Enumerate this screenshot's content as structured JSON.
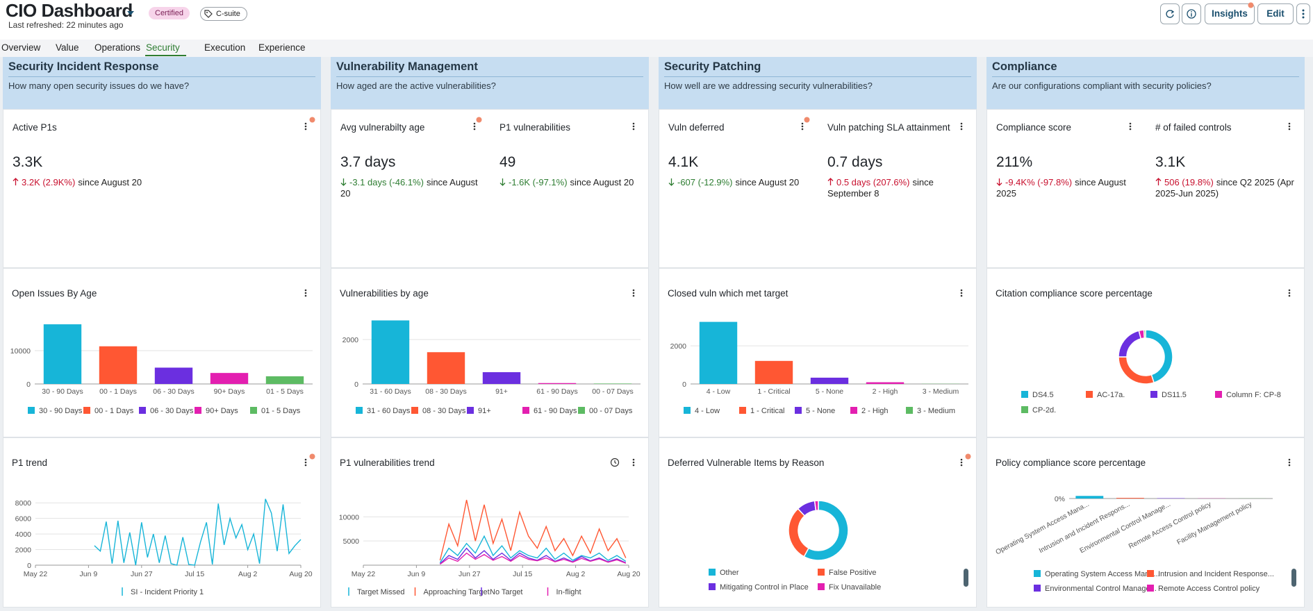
{
  "header": {
    "title": "CIO Dashboard",
    "last_refreshed": "Last refreshed: 22 minutes ago",
    "badges": [
      "Certified",
      "C-suite"
    ],
    "actions": [
      "Insights",
      "Edit"
    ]
  },
  "tabs": [
    "Overview",
    "Value",
    "Operations",
    "Security",
    "Execution",
    "Experience"
  ],
  "active_tab": 3,
  "columns": [
    {
      "title": "Security Incident Response",
      "question": "How many open security issues do we have?",
      "kpis": [
        {
          "title": "Active P1s",
          "value": "3.3K",
          "delta": "3.2K (2.9K%)",
          "since": "since August 20",
          "direction": "up",
          "color": "#c8102e"
        }
      ],
      "chart": {
        "type": "bar",
        "title": "Open Issues By Age",
        "categories": [
          "30 - 90 Days",
          "00 - 1 Days",
          "06 - 30 Days",
          "90+ Days",
          "01 - 5 Days"
        ],
        "values": [
          17900,
          11300,
          4900,
          3300,
          2300
        ],
        "colors": [
          "#17b5d8",
          "#ff5733",
          "#6b2fe0",
          "#e31fb0",
          "#5dbb63"
        ],
        "ylim": [
          0,
          20000
        ],
        "yticks": [
          0,
          10000
        ]
      },
      "trend": {
        "type": "line",
        "title": "P1 trend",
        "x": [
          "Jun 11",
          "Jun 13",
          "Jun 15",
          "Jun 17",
          "Jun 19",
          "Jun 21",
          "Jun 23",
          "Jun 25",
          "Jun 27",
          "Jun 29",
          "Jul 1",
          "Jul 3",
          "Jul 5",
          "Jul 7",
          "Jul 9",
          "Jul 11",
          "Jul 13",
          "Jul 15",
          "Jul 17",
          "Jul 19",
          "Jul 21",
          "Jul 23",
          "Jul 25",
          "Jul 27",
          "Jul 29",
          "Jul 31",
          "Aug 2",
          "Aug 4",
          "Aug 6",
          "Aug 8",
          "Aug 10",
          "Aug 12",
          "Aug 14",
          "Aug 16",
          "Aug 18",
          "Aug 20"
        ],
        "xlim": [
          "May 22",
          "Aug 20"
        ],
        "xticks": [
          "May 22",
          "Jun 9",
          "Jun 27",
          "Jul 15",
          "Aug 2",
          "Aug 20"
        ],
        "ylim": [
          0,
          9000
        ],
        "yticks": [
          0,
          2000,
          4000,
          6000,
          8000
        ],
        "series": [
          {
            "name": "SI - Incident Priority 1",
            "color": "#17b5d8",
            "values": [
              2500,
              1800,
              5600,
              200,
              5700,
              300,
              4200,
              0,
              5500,
              1000,
              4000,
              300,
              3800,
              200,
              0,
              3600,
              100,
              0,
              3000,
              5500,
              100,
              7900,
              2600,
              6000,
              3500,
              5200,
              2000,
              4000,
              200,
              8500,
              6700,
              1800,
              7800,
              1500,
              2500,
              3300
            ]
          }
        ]
      }
    },
    {
      "title": "Vulnerability Management",
      "question": "How aged are the active vulnerabilities?",
      "kpis": [
        {
          "title": "Avg vulnerabilty age",
          "value": "3.7 days",
          "delta": "-3.1 days (-46.1%)",
          "since": "since August 20",
          "direction": "down",
          "color": "#2e7d32"
        },
        {
          "title": "P1 vulnerabilities",
          "value": "49",
          "delta": "-1.6K (-97.1%)",
          "since": "since August 20",
          "direction": "down",
          "color": "#2e7d32"
        }
      ],
      "chart": {
        "type": "bar",
        "title": "Vulnerabilities by age",
        "categories": [
          "31 - 60 Days",
          "08 - 30 Days",
          "91+",
          "61 - 90 Days",
          "00 - 07 Days"
        ],
        "values": [
          2860,
          1430,
          530,
          40,
          20
        ],
        "colors": [
          "#17b5d8",
          "#ff5733",
          "#6b2fe0",
          "#e31fb0",
          "#5dbb63"
        ],
        "ylim": [
          0,
          3000
        ],
        "yticks": [
          0,
          2000
        ]
      },
      "trend": {
        "type": "line",
        "title": "P1 vulnerabilities trend",
        "x": [
          "Jun 17",
          "Jun 20",
          "Jun 23",
          "Jun 26",
          "Jun 29",
          "Jul 2",
          "Jul 5",
          "Jul 8",
          "Jul 11",
          "Jul 14",
          "Jul 17",
          "Jul 20",
          "Jul 23",
          "Jul 26",
          "Jul 29",
          "Aug 1",
          "Aug 4",
          "Aug 7",
          "Aug 10",
          "Aug 13",
          "Aug 16",
          "Aug 19"
        ],
        "xlim": [
          "May 22",
          "Aug 20"
        ],
        "xticks": [
          "May 22",
          "Jun 9",
          "Jun 27",
          "Jul 15",
          "Aug 2",
          "Aug 20"
        ],
        "ylim": [
          0,
          14500
        ],
        "yticks": [
          5000,
          10000
        ],
        "series": [
          {
            "name": "Target Missed",
            "color": "#17b5d8",
            "values": [
              500,
              3500,
              2000,
              4500,
              2500,
              6000,
              2000,
              4000,
              1500,
              3000,
              2000,
              1500,
              3500,
              1200,
              2500,
              1000,
              2000,
              1500,
              2500,
              1000,
              2000,
              800
            ]
          },
          {
            "name": "Approaching Target",
            "color": "#ff5733",
            "values": [
              1000,
              8500,
              4000,
              13500,
              5000,
              12500,
              4500,
              9500,
              3000,
              11000,
              6000,
              3500,
              8000,
              3000,
              5500,
              2000,
              6000,
              2500,
              7500,
              3000,
              5500,
              1500
            ]
          },
          {
            "name": "No Target",
            "color": "#6b2fe0",
            "values": [
              300,
              2000,
              1200,
              3500,
              1500,
              3000,
              1200,
              2500,
              1000,
              2500,
              1500,
              1000,
              2000,
              800,
              1500,
              700,
              1800,
              900,
              1500,
              700,
              1300,
              500
            ]
          },
          {
            "name": "In-flight",
            "color": "#e31fb0",
            "values": [
              200,
              1500,
              800,
              2500,
              1200,
              2200,
              1000,
              1800,
              800,
              2000,
              1200,
              900,
              1500,
              700,
              1200,
              600,
              1400,
              800,
              1300,
              600,
              1100,
              400
            ]
          }
        ]
      }
    },
    {
      "title": "Security Patching",
      "question": "How well are we addressing security vulnerabilities?",
      "kpis": [
        {
          "title": "Vuln deferred",
          "value": "4.1K",
          "delta": "-607 (-12.9%)",
          "since": "since August 20",
          "direction": "down",
          "color": "#2e7d32"
        },
        {
          "title": "Vuln patching SLA attainment",
          "value": "0.7 days",
          "delta": "0.5 days (207.6%)",
          "since": "since September 8",
          "direction": "up",
          "color": "#c8102e"
        }
      ],
      "chart": {
        "type": "bar",
        "title": "Closed vuln which met target",
        "categories": [
          "4 - Low",
          "1 - Critical",
          "5 - None",
          "2 - High",
          "3 - Medium"
        ],
        "values": [
          3260,
          1210,
          330,
          90,
          10
        ],
        "colors": [
          "#17b5d8",
          "#ff5733",
          "#6b2fe0",
          "#e31fb0",
          "#5dbb63"
        ],
        "ylim": [
          0,
          3500
        ],
        "yticks": [
          0,
          2000
        ]
      },
      "trend": {
        "type": "donut",
        "title": "Deferred Vulnerable Items by Reason",
        "categories": [
          "Other",
          "False Positive",
          "Mitigating Control in Place",
          "Fix Unavailable"
        ],
        "values": [
          58,
          30,
          10,
          2
        ],
        "colors": [
          "#17b5d8",
          "#ff5733",
          "#6b2fe0",
          "#e31fb0"
        ]
      }
    },
    {
      "title": "Compliance",
      "question": "Are our configurations compliant with security policies?",
      "kpis": [
        {
          "title": "Compliance score",
          "value": "211%",
          "delta": "-9.4K% (-97.8%)",
          "since": "since August 2025",
          "direction": "down",
          "color": "#c8102e"
        },
        {
          "title": "# of failed controls",
          "value": "3.1K",
          "delta": "506 (19.8%)",
          "since": "since Q2 2025 (Apr 2025-Jun 2025)",
          "direction": "up",
          "color": "#c8102e"
        }
      ],
      "chart": {
        "type": "donut",
        "title": "Citation compliance score percentage",
        "categories": [
          "DS4.5",
          "AC-17a.",
          "DS11.5",
          "Column F: CP-8",
          "CP-2d."
        ],
        "values": [
          45,
          30,
          21,
          3,
          1
        ],
        "colors": [
          "#17b5d8",
          "#ff5733",
          "#6b2fe0",
          "#e31fb0",
          "#5dbb63"
        ]
      },
      "trend": {
        "type": "bar",
        "title": "Policy compliance score percentage",
        "categories": [
          "Operating System Access Mana...",
          "Intrusion and Incident Respons...",
          "Environmental Control Manage...",
          "Remote Access Control policy",
          "Facility Management policy"
        ],
        "values": [
          8,
          2,
          1,
          0.5,
          0.3
        ],
        "colors": [
          "#17b5d8",
          "#ff5733",
          "#6b2fe0",
          "#e31fb0",
          "#5dbb63"
        ],
        "legend": [
          "Operating System Access Mana...",
          "Intrusion and Incident Response...",
          "Environmental Control Manage...",
          "Remote Access Control policy"
        ],
        "ylim": [
          0,
          100
        ],
        "yticks": [
          {
            "value": 0,
            "label": "0%"
          }
        ],
        "rotate_labels": true
      }
    }
  ]
}
